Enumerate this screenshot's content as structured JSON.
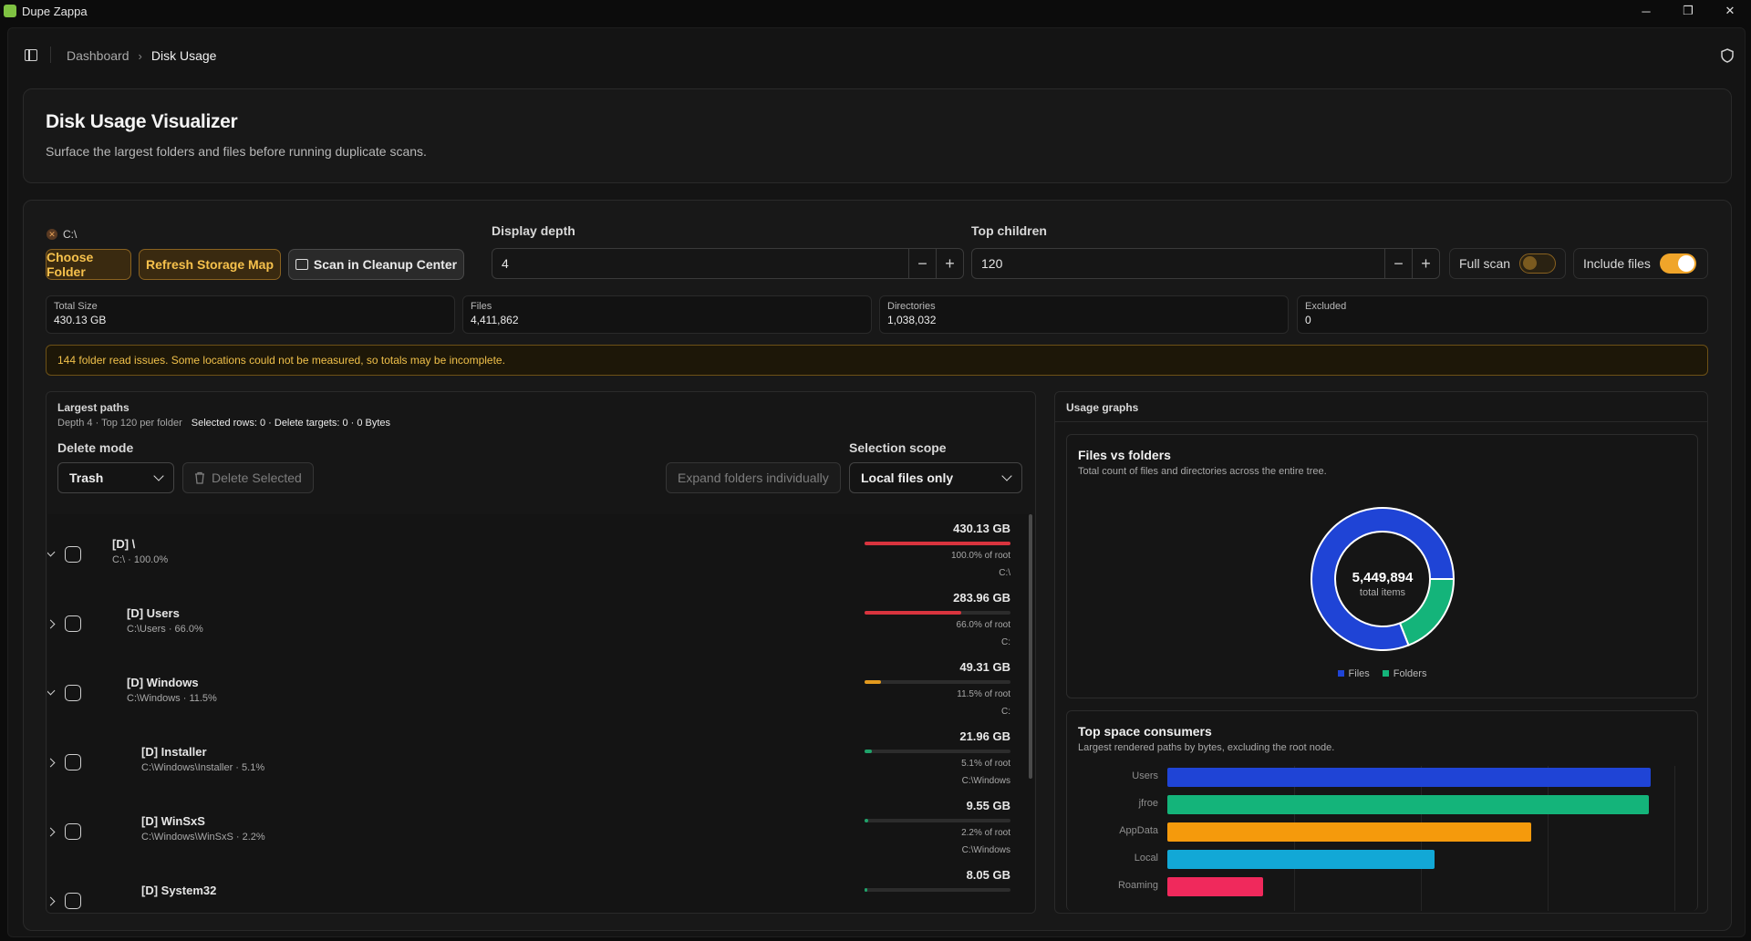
{
  "app": {
    "title": "Dupe Zappa"
  },
  "window_controls": {
    "minimize": "─",
    "restore": "❐",
    "close": "✕"
  },
  "breadcrumb": {
    "parent": "Dashboard",
    "separator": "›",
    "current": "Disk Usage"
  },
  "header": {
    "title": "Disk Usage Visualizer",
    "subtitle": "Surface the largest folders and files before running duplicate scans."
  },
  "scan": {
    "path": "C:\\",
    "clear_icon": "✕",
    "choose_folder": "Choose Folder",
    "refresh_map": "Refresh Storage Map",
    "scan_cleanup": "Scan in Cleanup Center",
    "depth_label": "Display depth",
    "depth_value": "4",
    "children_label": "Top children",
    "children_value": "120",
    "minus": "−",
    "plus": "+",
    "full_scan_label": "Full scan",
    "full_scan_on": false,
    "include_files_label": "Include files",
    "include_files_on": true
  },
  "stats": [
    {
      "label": "Total Size",
      "value": "430.13 GB"
    },
    {
      "label": "Files",
      "value": "4,411,862"
    },
    {
      "label": "Directories",
      "value": "1,038,032"
    },
    {
      "label": "Excluded",
      "value": "0"
    }
  ],
  "warning": "144 folder read issues. Some locations could not be measured, so totals may be incomplete.",
  "largest": {
    "title": "Largest paths",
    "meta": "Depth 4 · Top 120 per folder",
    "selection": "Selected rows: 0 · Delete targets: 0 · 0 Bytes",
    "delete_mode_label": "Delete mode",
    "delete_mode_value": "Trash",
    "delete_selected": "Delete Selected",
    "expand_individually": "Expand folders individually",
    "scope_label": "Selection scope",
    "scope_value": "Local files only",
    "rows": [
      {
        "name": "[D] \\",
        "sub": "C:\\ · 100.0%",
        "size": "430.13 GB",
        "pct": "100.0% of root",
        "parent": "C:\\",
        "fill": 100,
        "color": "#d9343e",
        "level": 0,
        "expanded": true
      },
      {
        "name": "[D] Users",
        "sub": "C:\\Users · 66.0%",
        "size": "283.96 GB",
        "pct": "66.0% of root",
        "parent": "C:",
        "fill": 66,
        "color": "#d9343e",
        "level": 1,
        "expanded": false
      },
      {
        "name": "[D] Windows",
        "sub": "C:\\Windows · 11.5%",
        "size": "49.31 GB",
        "pct": "11.5% of root",
        "parent": "C:",
        "fill": 11.5,
        "color": "#e39a1e",
        "level": 1,
        "expanded": true
      },
      {
        "name": "[D] Installer",
        "sub": "C:\\Windows\\Installer · 5.1%",
        "size": "21.96 GB",
        "pct": "5.1% of root",
        "parent": "C:\\Windows",
        "fill": 5.1,
        "color": "#1fa36a",
        "level": 2,
        "expanded": false
      },
      {
        "name": "[D] WinSxS",
        "sub": "C:\\Windows\\WinSxS · 2.2%",
        "size": "9.55 GB",
        "pct": "2.2% of root",
        "parent": "C:\\Windows",
        "fill": 2.2,
        "color": "#1fa36a",
        "level": 2,
        "expanded": false
      },
      {
        "name": "[D] System32",
        "sub": "",
        "size": "8.05 GB",
        "pct": "",
        "parent": "",
        "fill": 1.9,
        "color": "#1fa36a",
        "level": 2,
        "expanded": false
      }
    ]
  },
  "graphs": {
    "title": "Usage graphs",
    "donut": {
      "title": "Files vs folders",
      "subtitle": "Total count of files and directories across the entire tree.",
      "total": "5,449,894",
      "total_label": "total items",
      "files": 4411862,
      "folders": 1038032,
      "files_label": "Files",
      "folders_label": "Folders",
      "files_color": "#1f44d6",
      "folders_color": "#14b47a"
    },
    "consumers": {
      "title": "Top space consumers",
      "subtitle": "Largest rendered paths by bytes, excluding the root node.",
      "items": [
        {
          "label": "Users",
          "value": 283.96,
          "color": "#1f44d6"
        },
        {
          "label": "jfroe",
          "value": 283.0,
          "color": "#14b47a"
        },
        {
          "label": "AppData",
          "value": 214.0,
          "color": "#f59a0c"
        },
        {
          "label": "Local",
          "value": 157.0,
          "color": "#12a8d6"
        },
        {
          "label": "Roaming",
          "value": 56.0,
          "color": "#f0295c"
        }
      ]
    }
  }
}
